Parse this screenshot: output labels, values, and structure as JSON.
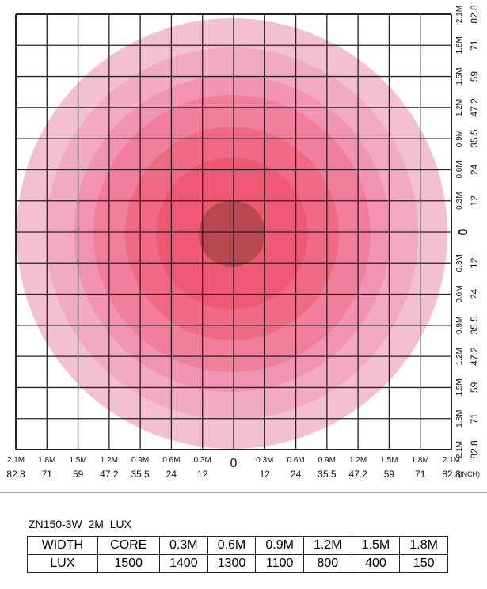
{
  "bottom_axis": {
    "left": [
      {
        "meters": "2.1M",
        "inches": "82.8"
      },
      {
        "meters": "1.8M",
        "inches": "71"
      },
      {
        "meters": "1.5M",
        "inches": "59"
      },
      {
        "meters": "1.2M",
        "inches": "47.2"
      },
      {
        "meters": "0.9M",
        "inches": "35.5"
      },
      {
        "meters": "0.6M",
        "inches": "24"
      },
      {
        "meters": "0.3M",
        "inches": "12"
      }
    ],
    "zero": "0",
    "right": [
      {
        "meters": "0.3M",
        "inches": "12"
      },
      {
        "meters": "0.6M",
        "inches": "24"
      },
      {
        "meters": "0.9M",
        "inches": "35.5"
      },
      {
        "meters": "1.2M",
        "inches": "47.2"
      },
      {
        "meters": "1.5M",
        "inches": "59"
      },
      {
        "meters": "1.8M",
        "inches": "71"
      },
      {
        "meters": "2.1M",
        "inches": "82.8"
      }
    ],
    "unit": "(INCH)"
  },
  "side_axis": {
    "top": [
      {
        "meters": "2.1M",
        "inches": "82.8"
      },
      {
        "meters": "1.8M",
        "inches": "71"
      },
      {
        "meters": "1.5M",
        "inches": "59"
      },
      {
        "meters": "1.2M",
        "inches": "47.2"
      },
      {
        "meters": "0.9M",
        "inches": "35.5"
      },
      {
        "meters": "0.6M",
        "inches": "24"
      },
      {
        "meters": "0.3M",
        "inches": "12"
      }
    ],
    "zero": "0",
    "bottom": [
      {
        "meters": "0.3M",
        "inches": "12"
      },
      {
        "meters": "0.6M",
        "inches": "24"
      },
      {
        "meters": "0.9M",
        "inches": "35.5"
      },
      {
        "meters": "1.2M",
        "inches": "47.2"
      },
      {
        "meters": "1.5M",
        "inches": "59"
      },
      {
        "meters": "1.8M",
        "inches": "71"
      },
      {
        "meters": "2.1M",
        "inches": "82.8"
      }
    ]
  },
  "table": {
    "title": "ZN150-3W  2M  LUX",
    "rows": [
      [
        "WIDTH",
        "CORE",
        "0.3M",
        "0.6M",
        "0.9M",
        "1.2M",
        "1.5M",
        "1.8M"
      ],
      [
        "LUX",
        "1500",
        "1400",
        "1300",
        "1100",
        "800",
        "400",
        "150"
      ]
    ]
  }
}
